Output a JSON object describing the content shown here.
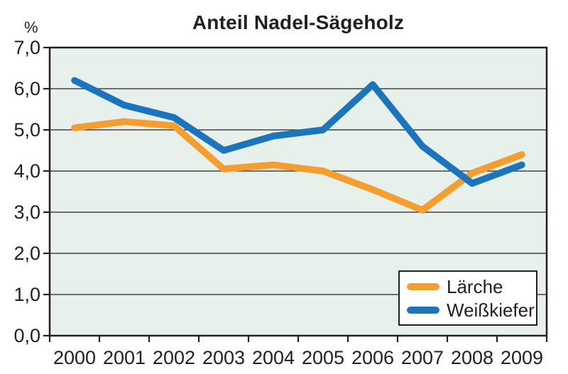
{
  "chart_data": {
    "type": "line",
    "title": "Anteil Nadel-Sägeholz",
    "ylabel": "%",
    "xlabel": "",
    "categories": [
      "2000",
      "2001",
      "2002",
      "2003",
      "2004",
      "2005",
      "2006",
      "2007",
      "2008",
      "2009"
    ],
    "series": [
      {
        "name": "Lärche",
        "color": "#F59D2E",
        "values": [
          5.05,
          5.2,
          5.1,
          4.05,
          4.15,
          4.0,
          3.55,
          3.05,
          3.95,
          4.4
        ]
      },
      {
        "name": "Weißkiefer",
        "color": "#1C75BC",
        "values": [
          6.2,
          5.6,
          5.3,
          4.5,
          4.85,
          5.0,
          6.1,
          4.6,
          3.7,
          4.15
        ]
      }
    ],
    "ylim": [
      0,
      7
    ],
    "ytick_step": 1,
    "ytick_labels": [
      "0,0",
      "1,0",
      "2,0",
      "3,0",
      "4,0",
      "5,0",
      "6,0",
      "7,0"
    ],
    "grid": true,
    "legend_position": "bottom-right",
    "colors": {
      "plot_background": "#E8F0EB",
      "axis": "#231F20",
      "gridline": "#231F20",
      "text": "#231F20",
      "page_background": "#FFFFFF"
    }
  }
}
